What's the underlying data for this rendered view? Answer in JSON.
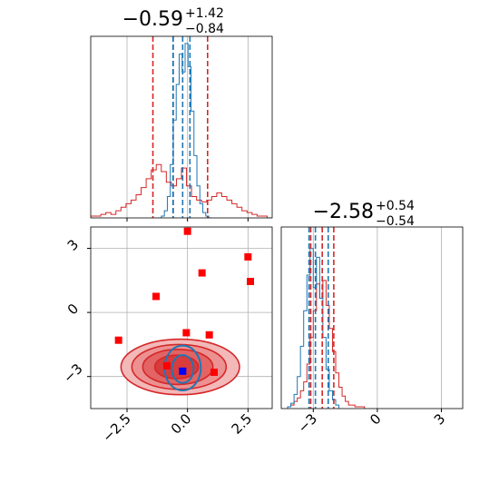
{
  "chart_data": {
    "type": "corner",
    "grid": true,
    "colors": {
      "red": "#d62728",
      "blue": "#1f77b4",
      "point_red": "#ff0000",
      "point_blue": "#0000ff"
    },
    "params": [
      {
        "id": "x",
        "range": [
          -4.0,
          3.5
        ],
        "ticks": [
          -2.5,
          0.0,
          2.5
        ],
        "tick_labels": [
          "−2.5",
          "0.0",
          "2.5"
        ]
      },
      {
        "id": "y",
        "range": [
          -4.5,
          4.0
        ],
        "ticks": [
          -3,
          0,
          3
        ],
        "tick_labels": [
          "−3",
          "0",
          "3"
        ]
      }
    ],
    "titles": [
      {
        "main": "−0.59",
        "sup": "+1.42",
        "sub": "−0.84"
      },
      {
        "main": "−2.58",
        "sup": "+0.54",
        "sub": "−0.54"
      }
    ],
    "hist_x": {
      "red_quantiles": [
        -1.43,
        -0.59,
        0.83
      ],
      "blue_quantiles": [
        -0.6,
        -0.2,
        0.1
      ],
      "red_counts": [
        0.01,
        0.01,
        0.02,
        0.03,
        0.02,
        0.04,
        0.06,
        0.08,
        0.1,
        0.13,
        0.17,
        0.22,
        0.27,
        0.3,
        0.26,
        0.2,
        0.18,
        0.22,
        0.28,
        0.18,
        0.12,
        0.1,
        0.09,
        0.1,
        0.12,
        0.14,
        0.12,
        0.1,
        0.08,
        0.06,
        0.04,
        0.03,
        0.02,
        0.01,
        0.01,
        0.0
      ],
      "blue_counts": [
        0.0,
        0.01,
        0.04,
        0.12,
        0.3,
        0.55,
        0.75,
        0.92,
        0.82,
        0.98,
        0.85,
        0.6,
        0.35,
        0.18,
        0.08,
        0.03,
        0.01,
        0.0
      ],
      "blue_x_range": [
        -1.2,
        1.0
      ]
    },
    "hist_y": {
      "red_quantiles": [
        -3.12,
        -2.58,
        -2.04
      ],
      "blue_quantiles": [
        -3.2,
        -2.9,
        -2.3
      ],
      "red_counts": [
        0.01,
        0.02,
        0.04,
        0.06,
        0.1,
        0.15,
        0.25,
        0.4,
        0.55,
        0.7,
        0.62,
        0.72,
        0.58,
        0.45,
        0.32,
        0.2,
        0.12,
        0.07,
        0.04,
        0.02,
        0.02,
        0.01,
        0.01,
        0.01
      ],
      "red_y_range": [
        -4.2,
        -0.6
      ],
      "blue_counts": [
        0.01,
        0.03,
        0.08,
        0.18,
        0.35,
        0.55,
        0.75,
        0.9,
        0.68,
        0.85,
        0.62,
        0.4,
        0.22,
        0.1,
        0.05,
        0.02
      ],
      "blue_y_range": [
        -4.2,
        -1.8
      ]
    },
    "scatter_red_squares": [
      {
        "x": 0.0,
        "y": 3.8
      },
      {
        "x": 2.5,
        "y": 2.6
      },
      {
        "x": 0.6,
        "y": 1.85
      },
      {
        "x": 2.6,
        "y": 1.45
      },
      {
        "x": -1.3,
        "y": 0.75
      },
      {
        "x": -0.05,
        "y": -0.95
      },
      {
        "x": 0.9,
        "y": -1.05
      },
      {
        "x": -2.85,
        "y": -1.3
      },
      {
        "x": -0.85,
        "y": -2.5
      },
      {
        "x": 1.1,
        "y": -2.8
      }
    ],
    "scatter_blue_squares": [
      {
        "x": -0.2,
        "y": -2.75
      }
    ],
    "contours_red": [
      {
        "cx": -0.3,
        "cy": -2.55,
        "rx": 2.45,
        "ry": 1.3,
        "fill": "#f3b8b8"
      },
      {
        "cx": -0.35,
        "cy": -2.55,
        "rx": 1.95,
        "ry": 1.05,
        "fill": "#ec9191"
      },
      {
        "cx": -0.4,
        "cy": -2.55,
        "rx": 1.45,
        "ry": 0.82,
        "fill": "#e26464"
      },
      {
        "cx": -0.45,
        "cy": -2.55,
        "rx": 0.9,
        "ry": 0.55,
        "fill": "#d83b3b"
      }
    ],
    "contours_blue": [
      {
        "cx": -0.2,
        "cy": -2.6,
        "rx": 0.75,
        "ry": 1.05
      },
      {
        "cx": -0.2,
        "cy": -2.65,
        "rx": 0.45,
        "ry": 0.65
      }
    ]
  }
}
